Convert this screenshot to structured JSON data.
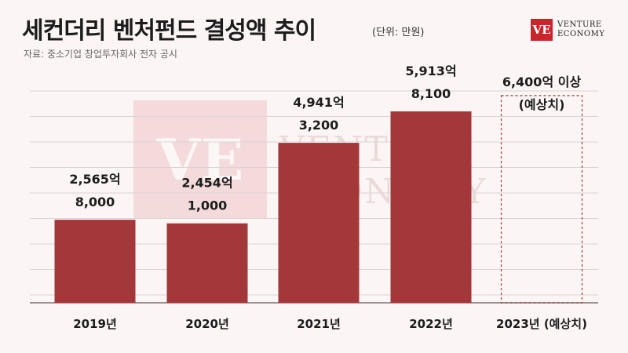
{
  "title": "세컨더리 벤처펀드 결성액 추이",
  "unit": "(단위: 만원)",
  "source": "자료: 중소기업 창업투자회사 전자 공시",
  "logo": {
    "mark": "VE",
    "line1": "VENTURE",
    "line2": "ECONOMY"
  },
  "watermark": {
    "mark": "VE",
    "line1": "VENTURE",
    "line2": "ECONOMY"
  },
  "chart_data": {
    "type": "bar",
    "categories": [
      "2019년",
      "2020년",
      "2021년",
      "2022년",
      "2023년 (예상치)"
    ],
    "values": [
      2565,
      2454,
      4941,
      5913,
      6400
    ],
    "value_labels": [
      "2,565억",
      "2,454억",
      "4,941억",
      "5,913억",
      "6,400억 이상"
    ],
    "secondary_labels": [
      "8,000",
      "1,000",
      "3,200",
      "8,100",
      "(예상치)"
    ],
    "projected": [
      false,
      false,
      false,
      false,
      true
    ],
    "bar_color": "#a3373a",
    "projected_stroke": "#a3373a",
    "grid": true,
    "title": "세컨더리 벤처펀드 결성액 추이"
  }
}
